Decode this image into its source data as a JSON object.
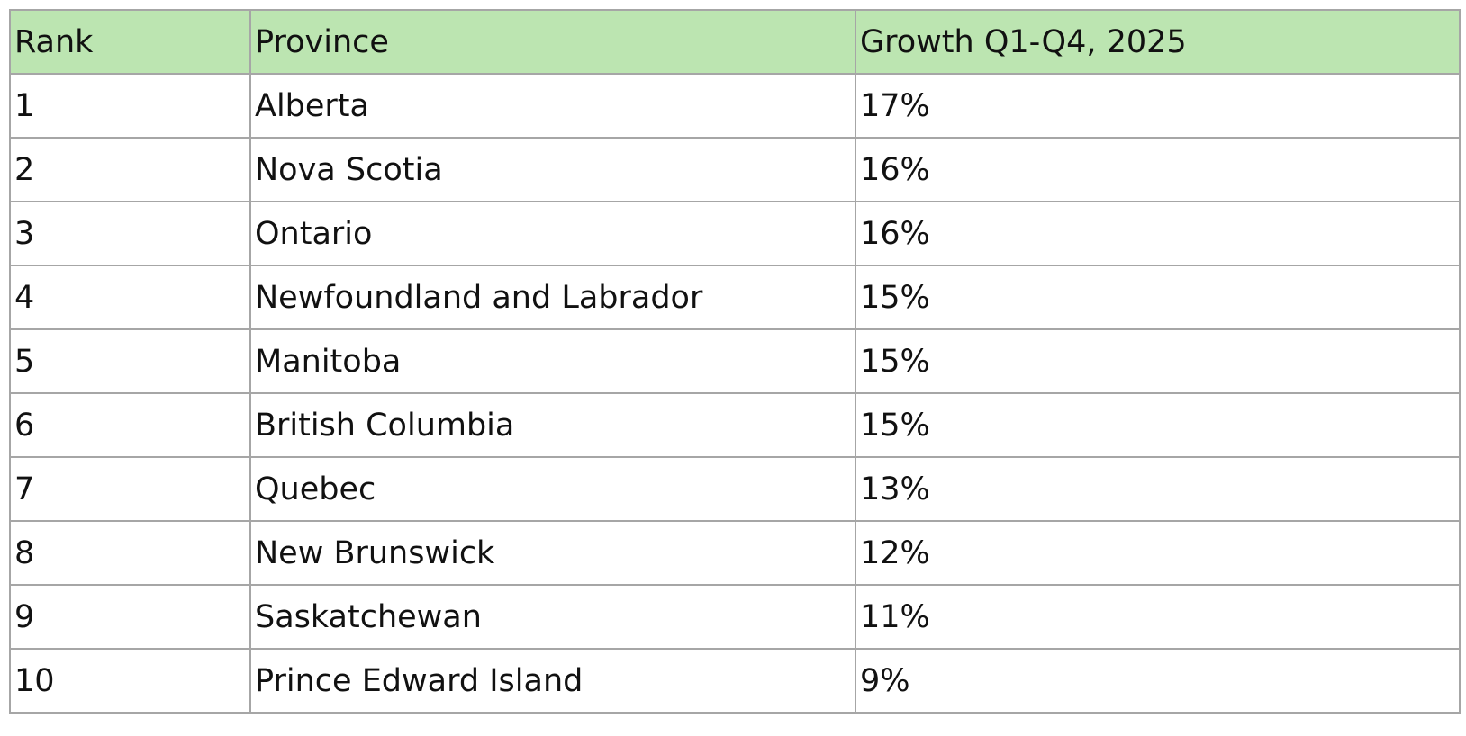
{
  "table": {
    "header": [
      "Rank",
      "Province",
      "Growth Q1-Q4, 2025"
    ],
    "rows": [
      [
        "1",
        "Alberta",
        "17%"
      ],
      [
        "2",
        "Nova Scotia",
        "16%"
      ],
      [
        "3",
        "Ontario",
        "16%"
      ],
      [
        "4",
        "Newfoundland and Labrador",
        "15%"
      ],
      [
        "5",
        "Manitoba",
        "15%"
      ],
      [
        "6",
        "British Columbia",
        "15%"
      ],
      [
        "7",
        "Quebec",
        "13%"
      ],
      [
        "8",
        "New Brunswick",
        "12%"
      ],
      [
        "9",
        "Saskatchewan",
        "11%"
      ],
      [
        "10",
        "Prince Edward Island",
        "9%"
      ]
    ]
  }
}
